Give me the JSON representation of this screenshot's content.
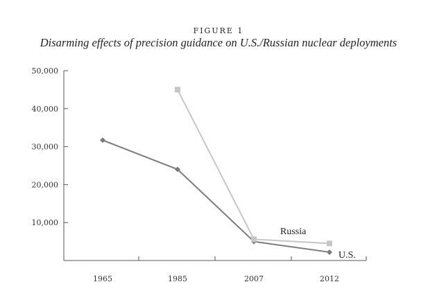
{
  "figure": {
    "label": "FIGURE 1",
    "title": "Disarming effects of precision guidance on U.S./Russian nuclear deployments"
  },
  "chart_data": {
    "type": "line",
    "categories": [
      "1965",
      "1985",
      "2007",
      "2012"
    ],
    "ylim": [
      0,
      50000
    ],
    "yticks": [
      10000,
      20000,
      30000,
      40000,
      50000
    ],
    "ytick_labels": [
      "10,000",
      "20,000",
      "30,000",
      "40,000",
      "50,000"
    ],
    "grid": false,
    "series": [
      {
        "name": "U.S.",
        "color": "#7a7a7a",
        "marker": "diamond",
        "values": [
          31700,
          24000,
          5000,
          2200
        ]
      },
      {
        "name": "Russia",
        "color": "#c6c6c6",
        "marker": "square",
        "values": [
          null,
          45000,
          5600,
          4500
        ]
      }
    ]
  }
}
